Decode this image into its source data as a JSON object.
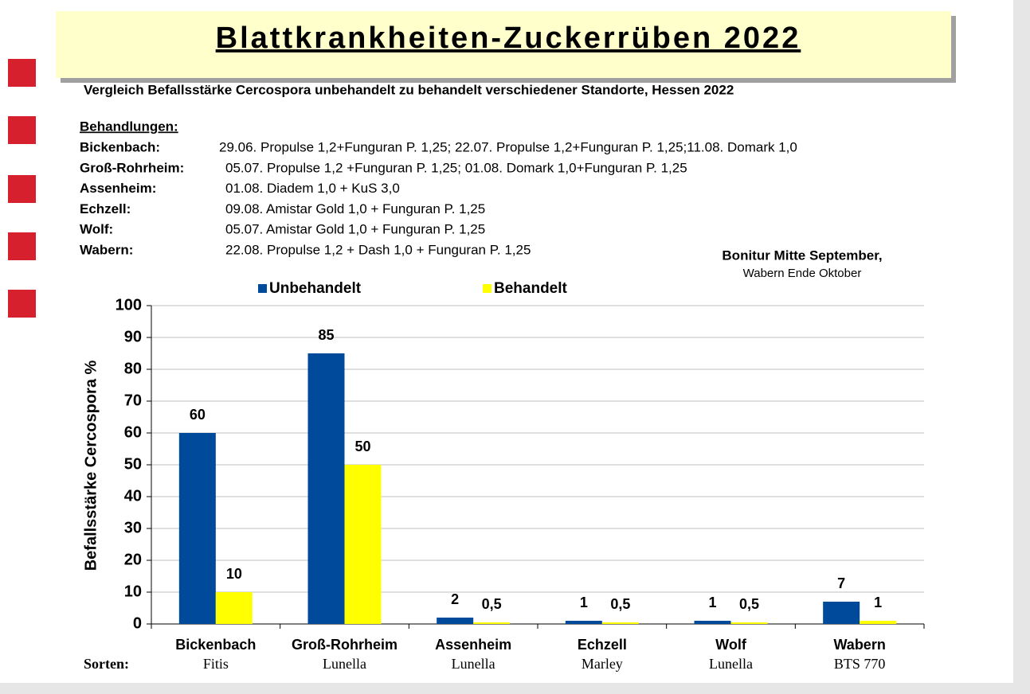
{
  "title": "Blattkrankheiten-Zuckerrüben 2022",
  "subtitle": "Vergleich Befallsstärke Cercospora unbehandelt zu behandelt verschiedener Standorte, Hessen 2022",
  "treatments": {
    "heading": "Behandlungen:",
    "rows": [
      {
        "site": "Bickenbach:",
        "text": "29.06. Propulse 1,2+Funguran P. 1,25; 22.07. Propulse 1,2+Funguran P. 1,25;11.08. Domark 1,0"
      },
      {
        "site": "Groß-Rohrheim:",
        "text": "05.07. Propulse 1,2 +Funguran P. 1,25; 01.08. Domark 1,0+Funguran P. 1,25"
      },
      {
        "site": "Assenheim:",
        "text": "01.08. Diadem 1,0 + KuS 3,0"
      },
      {
        "site": "Echzell:",
        "text": "09.08. Amistar Gold 1,0 + Funguran P. 1,25"
      },
      {
        "site": "Wolf:",
        "text": "05.07. Amistar Gold 1,0 + Funguran P. 1,25"
      },
      {
        "site": "Wabern:",
        "text": "22.08. Propulse 1,2 + Dash 1,0 + Funguran P. 1,25"
      }
    ]
  },
  "note": [
    "Bonitur Mitte September,",
    "Wabern Ende Oktober"
  ],
  "chart_data": {
    "type": "bar",
    "ylabel": "Befallsstärke Cercospora %",
    "categories": [
      "Bickenbach",
      "Groß-Rohrheim",
      "Assenheim",
      "Echzell",
      "Wolf",
      "Wabern"
    ],
    "varieties_label": "Sorten:",
    "varieties": [
      "Fitis",
      "Lunella",
      "Lunella",
      "Marley",
      "Lunella",
      "BTS 770"
    ],
    "series": [
      {
        "name": "Unbehandelt",
        "color": "#004a9c",
        "values": [
          60,
          85,
          2,
          1,
          1,
          7
        ]
      },
      {
        "name": "Behandelt",
        "color": "#ffff00",
        "values": [
          10,
          50,
          0.5,
          0.5,
          0.5,
          1
        ],
        "value_labels": [
          "10",
          "50",
          "0,5",
          "0,5",
          "0,5",
          "1"
        ]
      }
    ],
    "ylim": [
      0,
      100
    ],
    "yticks": [
      0,
      10,
      20,
      30,
      40,
      50,
      60,
      70,
      80,
      90,
      100
    ],
    "grid": true,
    "legend": "top"
  }
}
